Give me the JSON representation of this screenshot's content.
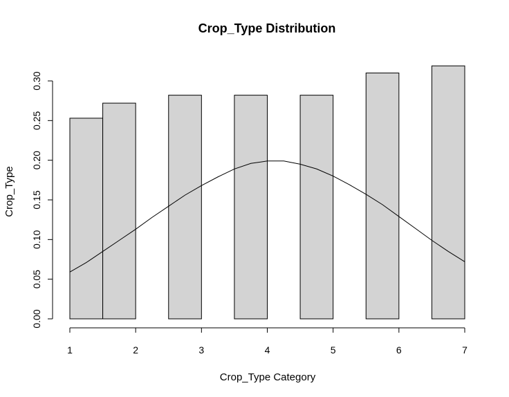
{
  "chart_data": {
    "type": "bar",
    "title": "Crop_Type Distribution",
    "xlabel": "Crop_Type Category",
    "ylabel": "Crop_Type",
    "xlim": [
      1,
      7
    ],
    "ylim": [
      0,
      0.3
    ],
    "x_ticks": [
      "1",
      "2",
      "3",
      "4",
      "5",
      "6",
      "7"
    ],
    "y_ticks": [
      "0.00",
      "0.05",
      "0.10",
      "0.15",
      "0.20",
      "0.25",
      "0.30"
    ],
    "bars": [
      {
        "x0": 1.0,
        "x1": 1.5,
        "value": 0.253
      },
      {
        "x0": 1.5,
        "x1": 2.0,
        "value": 0.272
      },
      {
        "x0": 2.5,
        "x1": 3.0,
        "value": 0.282
      },
      {
        "x0": 3.5,
        "x1": 4.0,
        "value": 0.282
      },
      {
        "x0": 4.5,
        "x1": 5.0,
        "value": 0.282
      },
      {
        "x0": 5.5,
        "x1": 6.0,
        "value": 0.31
      },
      {
        "x0": 6.5,
        "x1": 7.0,
        "value": 0.319
      }
    ],
    "density_curve": {
      "type": "line",
      "x": [
        1.0,
        1.25,
        1.5,
        1.75,
        2.0,
        2.25,
        2.5,
        2.75,
        3.0,
        3.25,
        3.5,
        3.75,
        4.0,
        4.25,
        4.5,
        4.75,
        5.0,
        5.25,
        5.5,
        5.75,
        6.0,
        6.25,
        6.5,
        6.75,
        7.0
      ],
      "y": [
        0.059,
        0.071,
        0.085,
        0.099,
        0.113,
        0.128,
        0.142,
        0.156,
        0.168,
        0.179,
        0.189,
        0.196,
        0.199,
        0.199,
        0.195,
        0.189,
        0.18,
        0.169,
        0.157,
        0.144,
        0.129,
        0.114,
        0.099,
        0.085,
        0.072
      ]
    },
    "grid": false,
    "legend": "none"
  }
}
